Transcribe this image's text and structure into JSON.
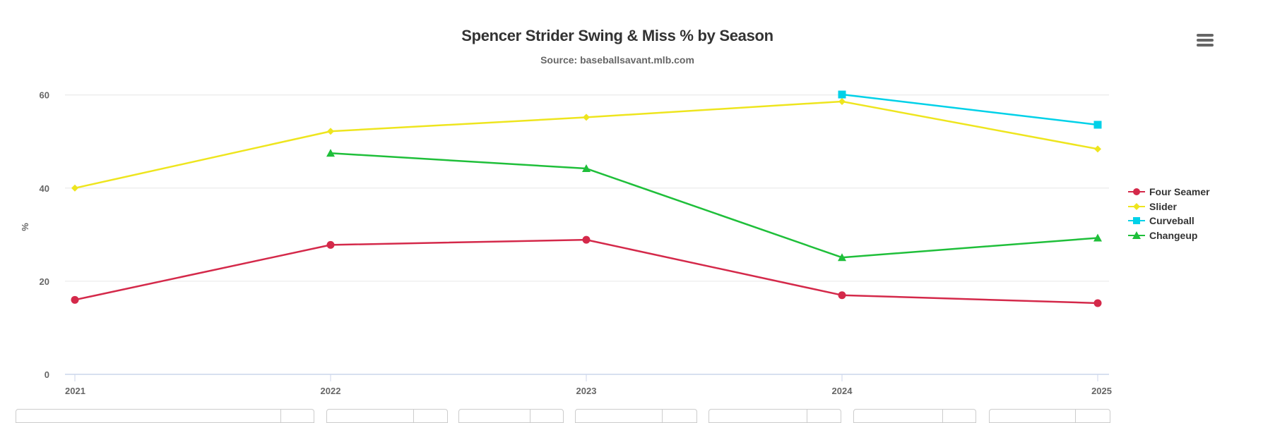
{
  "chart_data": {
    "type": "line",
    "title": "Spencer Strider Swing & Miss % by Season",
    "subtitle": "Source: baseballsavant.mlb.com",
    "xlabel": "",
    "ylabel": "%",
    "categories": [
      "2021",
      "2022",
      "2023",
      "2024",
      "2025"
    ],
    "ylim": [
      0,
      60
    ],
    "yticks": [
      0,
      20,
      40,
      60
    ],
    "grid": true,
    "legend_position": "right",
    "series": [
      {
        "name": "Four Seamer",
        "color": "#D4294A",
        "marker": "circle",
        "values": [
          16.0,
          27.8,
          28.9,
          17.0,
          15.3
        ]
      },
      {
        "name": "Slider",
        "color": "#EEE51E",
        "marker": "diamond",
        "values": [
          40.0,
          52.2,
          55.2,
          58.6,
          48.4
        ]
      },
      {
        "name": "Curveball",
        "color": "#00D1E8",
        "marker": "square",
        "values": [
          null,
          null,
          null,
          60.1,
          53.6
        ]
      },
      {
        "name": "Changeup",
        "color": "#1FBF3A",
        "marker": "triangle",
        "values": [
          null,
          47.5,
          44.2,
          25.1,
          29.3
        ]
      }
    ]
  },
  "header": {
    "title": "Spencer Strider Swing & Miss % by Season",
    "subtitle": "Source: baseballsavant.mlb.com",
    "menu_icon": "hamburger-menu-icon"
  },
  "axes": {
    "y_label": "%",
    "y_ticks": [
      "0",
      "20",
      "40",
      "60"
    ],
    "x_ticks": [
      "2021",
      "2022",
      "2023",
      "2024",
      "2025"
    ]
  },
  "legend": {
    "items": [
      {
        "label": "Four Seamer",
        "color": "#D4294A"
      },
      {
        "label": "Slider",
        "color": "#EEE51E"
      },
      {
        "label": "Curveball",
        "color": "#00D1E8"
      },
      {
        "label": "Changeup",
        "color": "#1FBF3A"
      }
    ]
  }
}
